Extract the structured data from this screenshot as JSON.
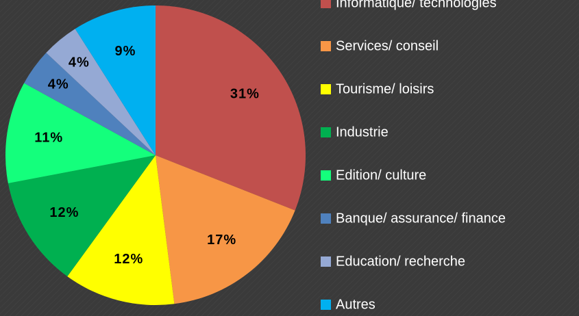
{
  "chart_data": {
    "type": "pie",
    "categories": [
      "Informatique/ technologies",
      "Services/ conseil",
      "Tourisme/ loisirs",
      "Industrie",
      "Edition/ culture",
      "Banque/ assurance/ finance",
      "Education/ recherche",
      "Autres"
    ],
    "values": [
      31,
      17,
      12,
      12,
      11,
      4,
      4,
      9
    ],
    "value_labels": [
      "31%",
      "17%",
      "12%",
      "12%",
      "11%",
      "4%",
      "4%",
      "9%"
    ],
    "colors": [
      "#c0504d",
      "#f79646",
      "#ffff00",
      "#00b050",
      "#14ff7c",
      "#4f81bd",
      "#95a9d4",
      "#00b0f0"
    ],
    "legend": "right"
  }
}
